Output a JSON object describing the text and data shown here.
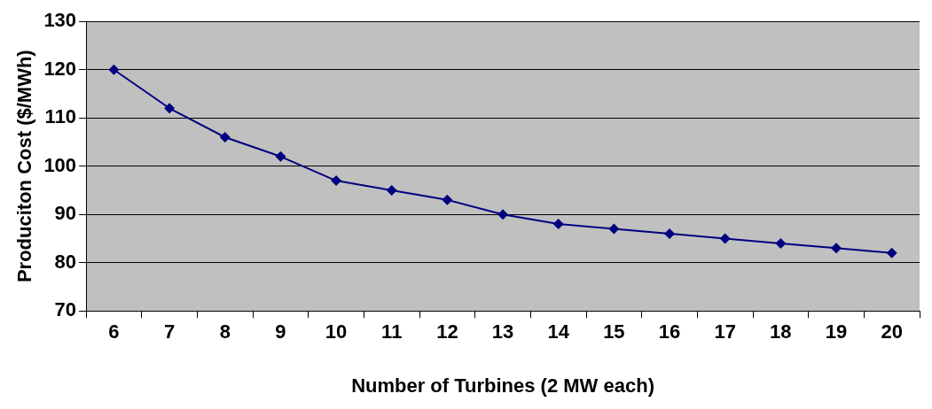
{
  "chart_data": {
    "type": "line",
    "xlabel": "Number of Turbines (2 MW each)",
    "ylabel": "Produciton Cost ($/MWh)",
    "categories": [
      "6",
      "7",
      "8",
      "9",
      "10",
      "11",
      "12",
      "13",
      "14",
      "15",
      "16",
      "17",
      "18",
      "19",
      "20"
    ],
    "series": [
      {
        "color": "#000080",
        "values": [
          120,
          112,
          106,
          102,
          97,
          95,
          93,
          90,
          88,
          87,
          86,
          85,
          84,
          83,
          82
        ]
      }
    ],
    "ylim": [
      70,
      130
    ],
    "yticks": [
      70,
      80,
      90,
      100,
      110,
      120,
      130
    ],
    "grid": "y",
    "legend": false,
    "marker": "diamond",
    "line_style": "solid"
  }
}
